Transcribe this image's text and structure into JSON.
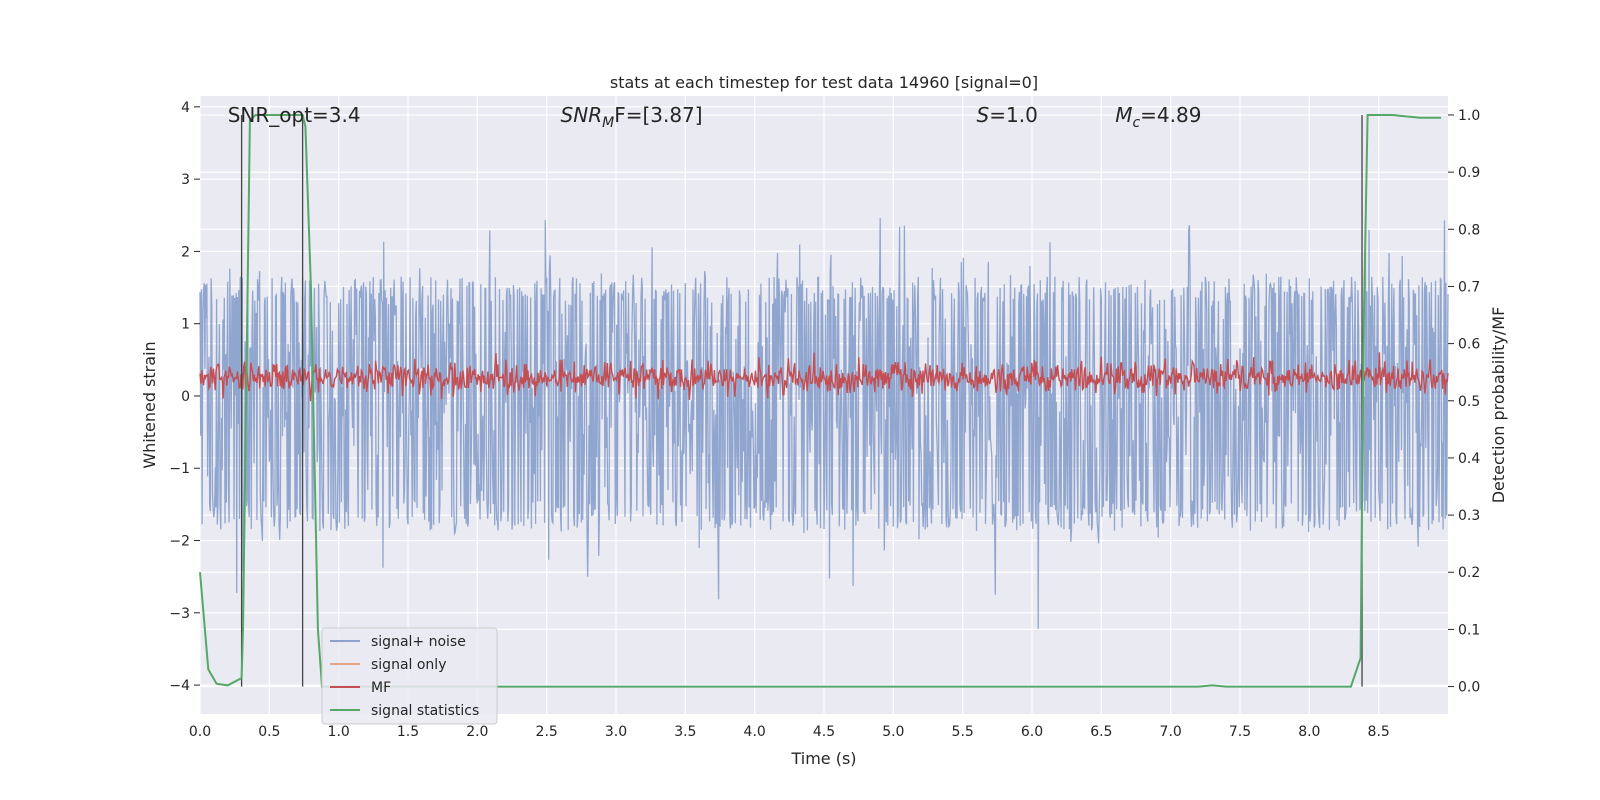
{
  "chart_data": {
    "type": "line",
    "title": "stats at each timestep for test data 14960 [signal=0]",
    "xlabel": "Time (s)",
    "ylabel_left": "Whitened strain",
    "ylabel_right": "Detection probability/MF",
    "xlim": [
      0.0,
      9.0
    ],
    "ylim_left": [
      -4.4,
      4.15
    ],
    "ylim_right": [
      -0.048,
      1.0332
    ],
    "x_ticks": [
      "0.0",
      "0.5",
      "1.0",
      "1.5",
      "2.0",
      "2.5",
      "3.0",
      "3.5",
      "4.0",
      "4.5",
      "5.0",
      "5.5",
      "6.0",
      "6.5",
      "7.0",
      "7.5",
      "8.0",
      "8.5"
    ],
    "y_ticks_left": [
      "4",
      "3",
      "2",
      "1",
      "0",
      "−1",
      "−2",
      "−3",
      "−4"
    ],
    "y_ticks_right": [
      "1.0",
      "0.9",
      "0.8",
      "0.7",
      "0.6",
      "0.5",
      "0.4",
      "0.3",
      "0.2",
      "0.1",
      "0.0"
    ],
    "grid": true,
    "legend_position": "lower-left",
    "annotations": [
      {
        "text": "SNR_opt=3.4",
        "x": 0.2
      },
      {
        "text_main": "SNR",
        "text_sub": "M",
        "text_tail": "F=[3.87]",
        "x": 2.6
      },
      {
        "text_main": "S",
        "text_tail": "=1.0",
        "x": 5.6
      },
      {
        "text_main": "M",
        "text_sub": "c",
        "text_tail": "=4.89",
        "x": 6.6
      }
    ],
    "series": [
      {
        "name": "signal+ noise",
        "axis": "left",
        "color": "#8ca2cc",
        "amplitude_band": [
          -1.7,
          1.5
        ],
        "peak_range": [
          -3.6,
          3.8
        ]
      },
      {
        "name": "signal only",
        "axis": "left",
        "color": "#e8a58a"
      },
      {
        "name": "MF",
        "axis": "right",
        "color": "#c44e52",
        "band": [
          0.51,
          0.57
        ]
      },
      {
        "name": "signal statistics",
        "axis": "right",
        "color": "#55a868",
        "x": [
          0.0,
          0.06,
          0.12,
          0.2,
          0.3,
          0.31,
          0.36,
          0.4,
          0.45,
          0.74,
          0.76,
          0.8,
          0.85,
          0.88,
          7.2,
          7.3,
          7.4,
          8.3,
          8.37,
          8.39,
          8.42,
          8.5,
          8.6,
          8.8,
          8.95
        ],
        "y": [
          0.2,
          0.03,
          0.005,
          0.002,
          0.015,
          0.1,
          0.99,
          1.0,
          1.0,
          1.0,
          0.98,
          0.7,
          0.1,
          0.0,
          0.0,
          0.002,
          0.0,
          0.0,
          0.05,
          0.6,
          1.0,
          1.0,
          1.0,
          0.995,
          0.995
        ]
      }
    ],
    "vertical_markers_x": [
      0.3,
      0.74,
      8.38
    ]
  }
}
